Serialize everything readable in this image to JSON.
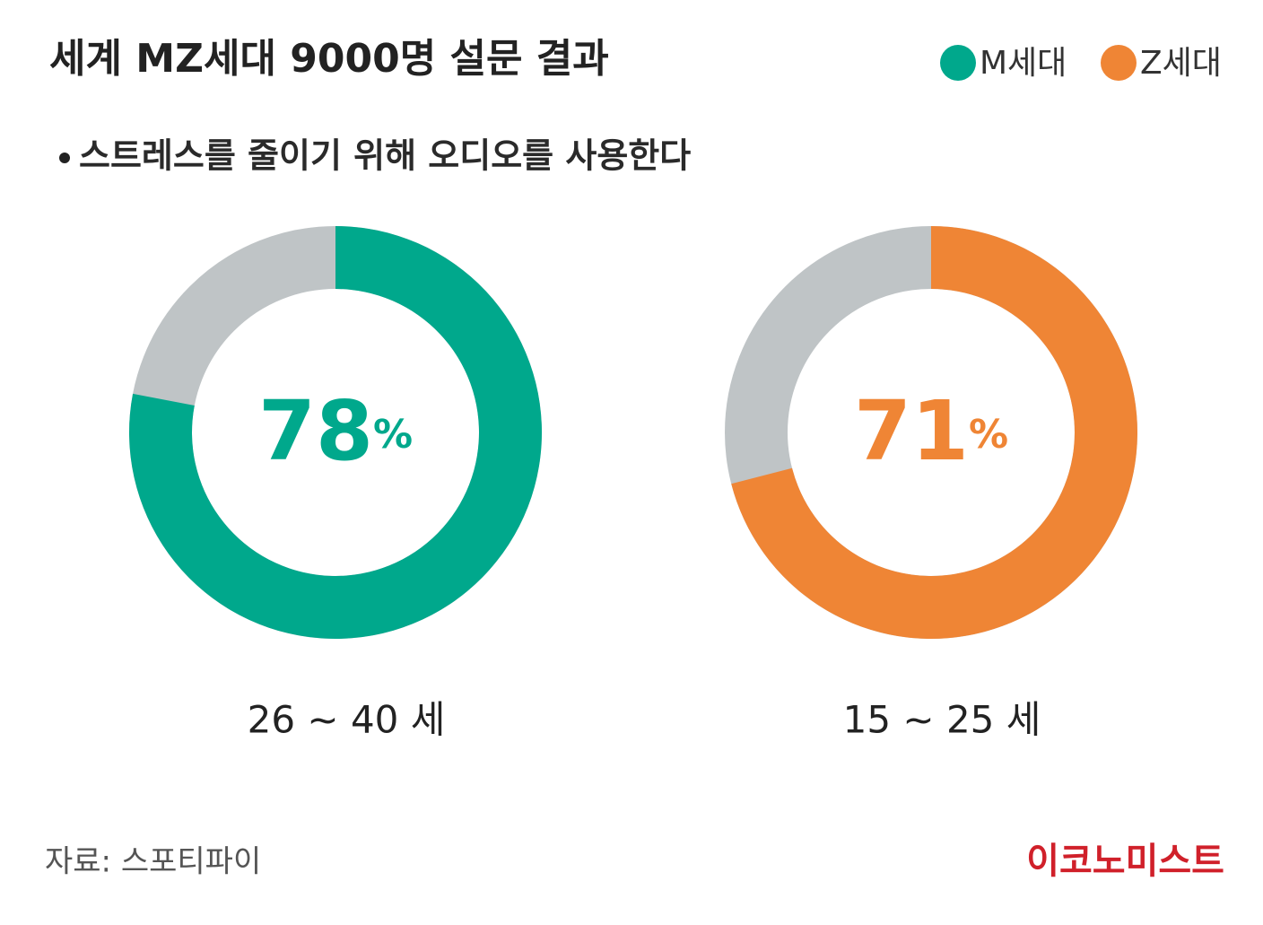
{
  "title": "세계 MZ세대 9000명 설문 결과",
  "subtitle": "스트레스를 줄이기 위해 오디오를 사용한다",
  "source": "자료: 스포티파이",
  "brand": "이코노미스트",
  "chart_data": [
    {
      "type": "donut",
      "label": "26 ~ 40 세",
      "rest_color": "#bfc4c6",
      "series": [
        {
          "name": "M세대",
          "color": "#00a88c",
          "values": [
            78
          ],
          "value_labels": [
            "78%"
          ]
        }
      ]
    },
    {
      "type": "donut",
      "label": "15 ~ 25 세",
      "rest_color": "#bfc4c6",
      "series": [
        {
          "name": "Z세대",
          "color": "#ef8535",
          "values": [
            71
          ],
          "value_labels": [
            "71%"
          ]
        }
      ]
    }
  ]
}
